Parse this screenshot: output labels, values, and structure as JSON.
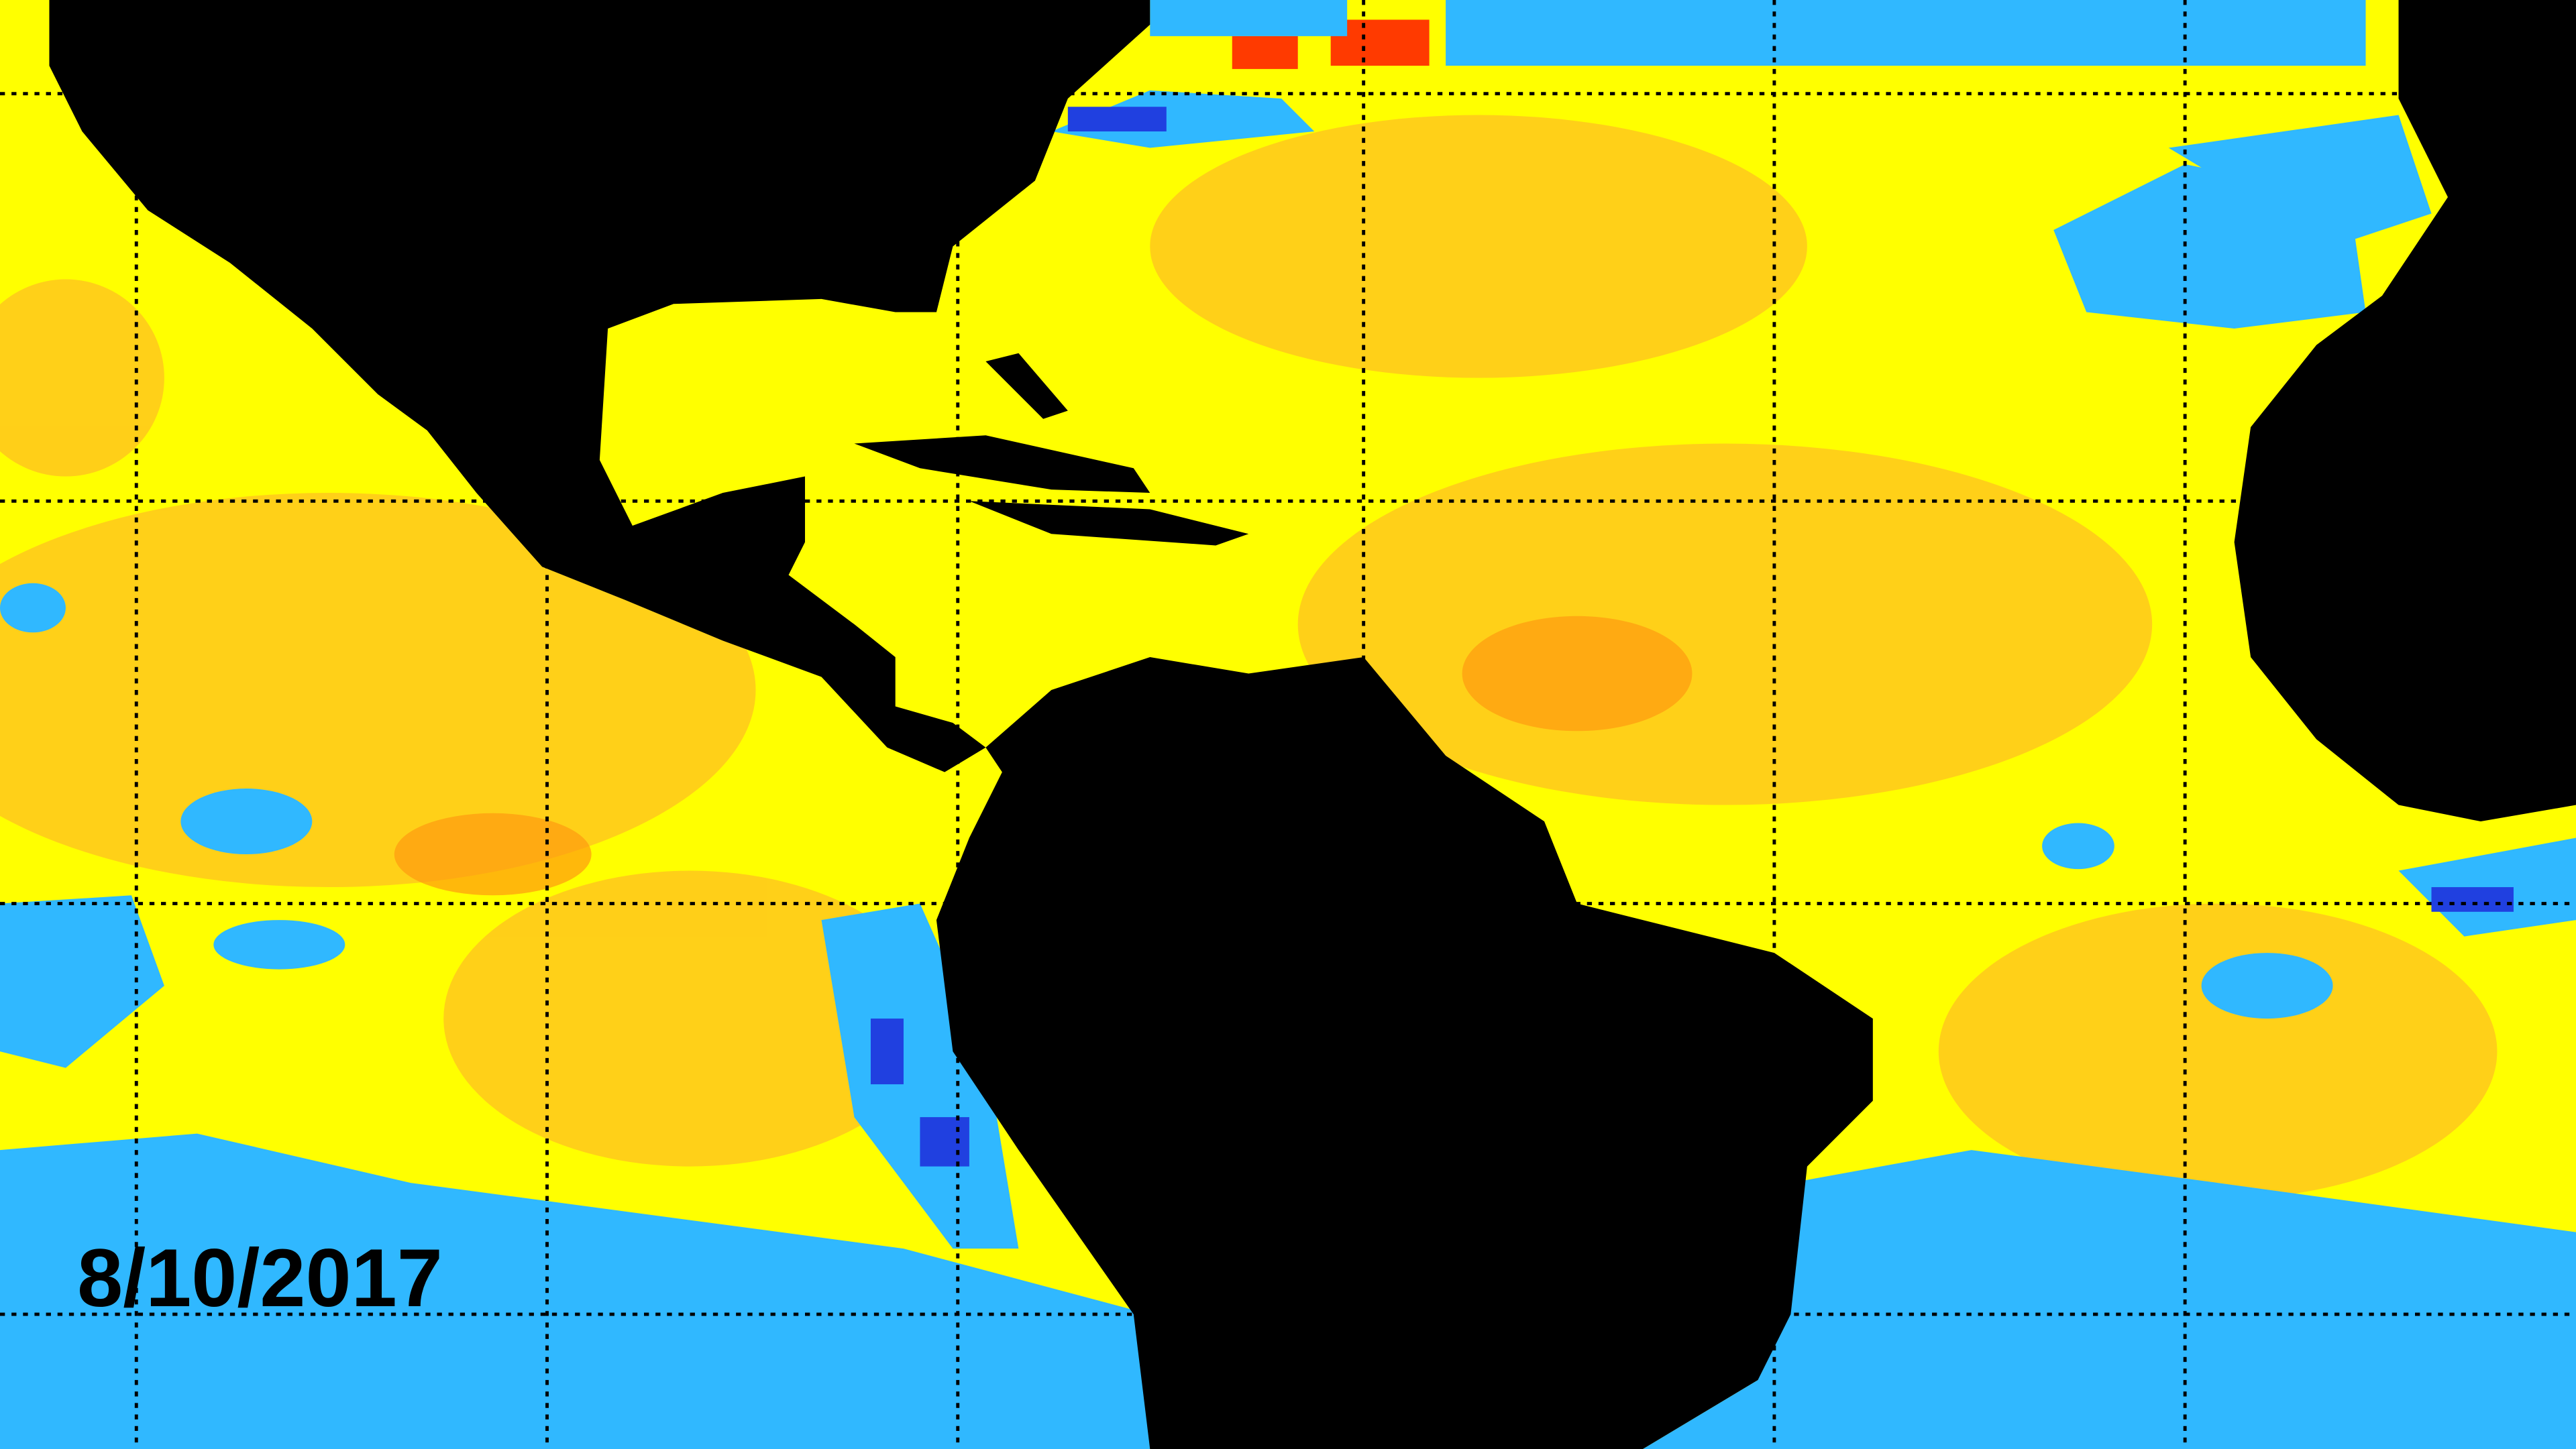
{
  "map": {
    "date_label": "8/10/2017"
  }
}
